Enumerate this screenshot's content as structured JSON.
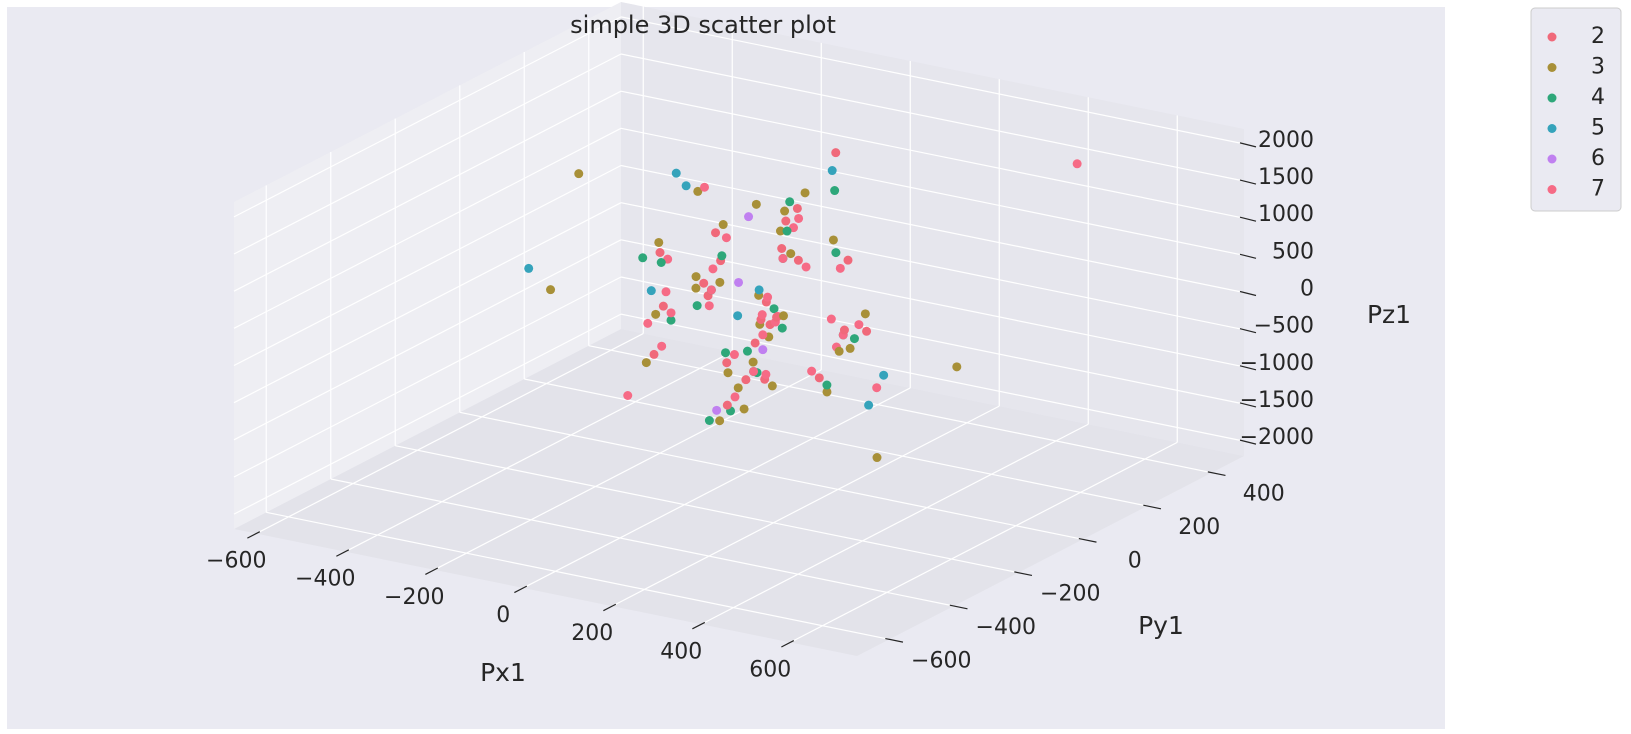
{
  "chart_data": {
    "type": "scatter",
    "projection": "3d",
    "title": "simple 3D scatter plot",
    "xlabel": "Px1",
    "ylabel": "Py1",
    "zlabel": "Pz1",
    "xlim": [
      -650,
      750
    ],
    "ylim": [
      -700,
      500
    ],
    "zlim": [
      -2200,
      2200
    ],
    "xticks": [
      -600,
      -400,
      -200,
      0,
      200,
      400,
      600
    ],
    "yticks": [
      -600,
      -400,
      -200,
      0,
      200,
      400
    ],
    "zticks": [
      -2000,
      -1500,
      -1000,
      -500,
      0,
      500,
      1000,
      1500,
      2000
    ],
    "xtick_labels": [
      "−600",
      "−400",
      "−200",
      "0",
      "200",
      "400",
      "600"
    ],
    "ytick_labels": [
      "−600",
      "−400",
      "−200",
      "0",
      "200",
      "400"
    ],
    "ztick_labels": [
      "−2000",
      "−1500",
      "−1000",
      "−500",
      "0",
      "500",
      "1000",
      "1500",
      "2000"
    ],
    "grid": true,
    "legend_position": "outside top-right",
    "legend": [
      {
        "label": "2",
        "color": "#f0697a"
      },
      {
        "label": "3",
        "color": "#a89038"
      },
      {
        "label": "4",
        "color": "#2ea77a"
      },
      {
        "label": "5",
        "color": "#35a3bb"
      },
      {
        "label": "6",
        "color": "#c080f0"
      },
      {
        "label": "7",
        "color": "#f66b86"
      }
    ],
    "series": [
      {
        "name": "2",
        "color": "#f0697a",
        "points": [
          [
            -100,
            50,
            400
          ],
          [
            50,
            -50,
            -300
          ],
          [
            150,
            100,
            600
          ],
          [
            -50,
            0,
            -800
          ],
          [
            120,
            -80,
            200
          ],
          [
            -150,
            80,
            -200
          ],
          [
            0,
            150,
            1000
          ],
          [
            80,
            -120,
            -600
          ],
          [
            -80,
            -30,
            300
          ],
          [
            200,
            20,
            -100
          ],
          [
            30,
            60,
            700
          ],
          [
            -120,
            -100,
            100
          ],
          [
            170,
            130,
            -400
          ],
          [
            -30,
            90,
            -1200
          ],
          [
            90,
            -10,
            1300
          ],
          [
            -200,
            0,
            500
          ],
          [
            60,
            -150,
            -900
          ],
          [
            10,
            40,
            0
          ],
          [
            -60,
            120,
            -500
          ],
          [
            140,
            -40,
            900
          ],
          [
            -170,
            -60,
            -700
          ],
          [
            100,
            80,
            -1000
          ],
          [
            -10,
            -90,
            1200
          ],
          [
            40,
            10,
            -200
          ],
          [
            50,
            200,
            1700
          ]
        ]
      },
      {
        "name": "3",
        "color": "#a89038",
        "points": [
          [
            -80,
            20,
            200
          ],
          [
            60,
            -70,
            -500
          ],
          [
            110,
            110,
            800
          ],
          [
            -40,
            -10,
            -900
          ],
          [
            150,
            -100,
            300
          ],
          [
            -170,
            70,
            -100
          ],
          [
            10,
            160,
            1200
          ],
          [
            70,
            -130,
            -700
          ],
          [
            -90,
            -40,
            400
          ],
          [
            220,
            10,
            -300
          ],
          [
            20,
            70,
            900
          ],
          [
            -130,
            -110,
            0
          ],
          [
            160,
            140,
            -200
          ],
          [
            -20,
            100,
            -1300
          ],
          [
            80,
            0,
            1400
          ],
          [
            -210,
            10,
            600
          ],
          [
            50,
            -160,
            -1100
          ],
          [
            0,
            30,
            100
          ],
          [
            -70,
            130,
            -600
          ],
          [
            130,
            -50,
            1000
          ],
          [
            -180,
            -70,
            -800
          ],
          [
            110,
            90,
            -1200
          ],
          [
            0,
            -80,
            1300
          ],
          [
            30,
            20,
            -400
          ],
          [
            -600,
            300,
            400
          ],
          [
            650,
            -500,
            -100
          ],
          [
            420,
            -300,
            600
          ],
          [
            -260,
            200,
            800
          ],
          [
            60,
            -60,
            1600
          ],
          [
            -40,
            40,
            -1500
          ],
          [
            380,
            120,
            -600
          ],
          [
            -330,
            -160,
            200
          ]
        ]
      },
      {
        "name": "4",
        "color": "#2ea77a",
        "points": [
          [
            -90,
            40,
            500
          ],
          [
            40,
            -60,
            -400
          ],
          [
            130,
            90,
            700
          ],
          [
            -60,
            10,
            -700
          ],
          [
            140,
            -90,
            100
          ],
          [
            -160,
            60,
            -300
          ],
          [
            -10,
            140,
            1100
          ],
          [
            90,
            -110,
            -500
          ],
          [
            -70,
            -20,
            200
          ],
          [
            190,
            30,
            -200
          ],
          [
            40,
            50,
            600
          ],
          [
            -110,
            -90,
            -100
          ],
          [
            150,
            120,
            -500
          ],
          [
            -40,
            80,
            -1100
          ],
          [
            100,
            -20,
            1200
          ],
          [
            -190,
            -10,
            400
          ],
          [
            60,
            -140,
            -1000
          ],
          [
            20,
            50,
            -100
          ],
          [
            -420,
            250,
            -400
          ],
          [
            320,
            -200,
            -200
          ],
          [
            -60,
            -40,
            -1500
          ],
          [
            120,
            100,
            1500
          ]
        ]
      },
      {
        "name": "5",
        "color": "#35a3bb",
        "points": [
          [
            -640,
            200,
            -700
          ],
          [
            -350,
            180,
            -600
          ],
          [
            -250,
            150,
            1000
          ],
          [
            520,
            -300,
            400
          ],
          [
            450,
            -250,
            -200
          ],
          [
            100,
            120,
            1700
          ],
          [
            -120,
            -60,
            1800
          ],
          [
            30,
            -10,
            300
          ],
          [
            -40,
            20,
            -200
          ]
        ]
      },
      {
        "name": "6",
        "color": "#c080f0",
        "points": [
          [
            -30,
            40,
            1100
          ],
          [
            60,
            -40,
            -400
          ],
          [
            -80,
            10,
            -1500
          ],
          [
            20,
            -60,
            500
          ]
        ]
      },
      {
        "name": "7",
        "color": "#f66b86",
        "points": [
          [
            -110,
            40,
            300
          ],
          [
            60,
            -40,
            -200
          ],
          [
            140,
            90,
            500
          ],
          [
            -40,
            10,
            -700
          ],
          [
            110,
            -70,
            100
          ],
          [
            -140,
            70,
            -300
          ],
          [
            10,
            140,
            900
          ],
          [
            90,
            -110,
            -500
          ],
          [
            -70,
            -20,
            200
          ],
          [
            190,
            30,
            -200
          ],
          [
            40,
            50,
            600
          ],
          [
            -110,
            -90,
            0
          ],
          [
            160,
            120,
            -300
          ],
          [
            -20,
            80,
            -1100
          ],
          [
            100,
            0,
            1200
          ],
          [
            -190,
            10,
            400
          ],
          [
            70,
            -140,
            -800
          ],
          [
            20,
            30,
            100
          ],
          [
            -50,
            110,
            -400
          ],
          [
            150,
            -30,
            800
          ],
          [
            -160,
            -50,
            -600
          ],
          [
            90,
            70,
            -900
          ],
          [
            0,
            -70,
            1100
          ],
          [
            50,
            20,
            -100
          ],
          [
            -230,
            60,
            -200
          ],
          [
            240,
            -60,
            -100
          ],
          [
            -200,
            -100,
            -1200
          ],
          [
            200,
            120,
            -1100
          ],
          [
            -100,
            0,
            1500
          ],
          [
            330,
            -200,
            700
          ],
          [
            520,
            300,
            1900
          ],
          [
            -300,
            100,
            -800
          ]
        ]
      }
    ]
  }
}
